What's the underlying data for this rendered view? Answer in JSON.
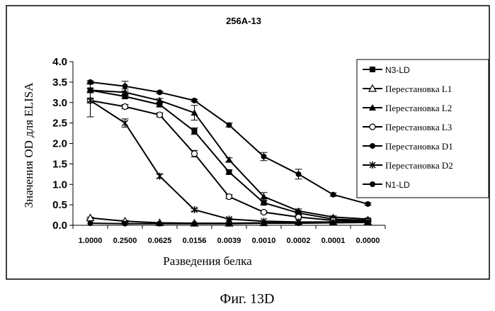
{
  "caption": "Фиг. 13D",
  "chart_data": {
    "type": "line",
    "title": "256A-13",
    "xlabel": "Разведения белка",
    "ylabel": "Значения OD для ELISA",
    "categories": [
      "1.0000",
      "0.2500",
      "0.0625",
      "0.0156",
      "0.0039",
      "0.0010",
      "0.0002",
      "0.0001",
      "0.0000"
    ],
    "ylim": [
      0,
      4
    ],
    "yticks": [
      "0.0",
      "0.5",
      "1.0",
      "1.5",
      "2.0",
      "2.5",
      "3.0",
      "3.5",
      "4.0"
    ],
    "legend_position": "right",
    "series": [
      {
        "name": "N3-LD",
        "marker": "filled-square",
        "values": [
          3.3,
          3.15,
          2.95,
          2.3,
          1.3,
          0.55,
          0.3,
          0.15,
          0.12
        ],
        "errors": [
          0.05,
          0.05,
          0.05,
          0.08,
          0.05,
          0.05,
          0.05,
          0.03,
          0.02
        ]
      },
      {
        "name": "Перестановка L1",
        "marker": "open-triangle",
        "values": [
          0.18,
          0.1,
          0.06,
          0.05,
          0.05,
          0.06,
          0.07,
          0.08,
          0.08
        ],
        "errors": [
          0.02,
          0.02,
          0.01,
          0.01,
          0.01,
          0.01,
          0.01,
          0.01,
          0.01
        ]
      },
      {
        "name": "Перестановка L2",
        "marker": "filled-triangle",
        "values": [
          3.3,
          3.25,
          3.05,
          2.75,
          1.6,
          0.7,
          0.35,
          0.2,
          0.15
        ],
        "errors": [
          0.05,
          0.08,
          0.05,
          0.18,
          0.05,
          0.1,
          0.05,
          0.03,
          0.02
        ]
      },
      {
        "name": "Перестановка L3",
        "marker": "open-circle",
        "values": [
          3.05,
          2.9,
          2.7,
          1.75,
          0.7,
          0.32,
          0.2,
          0.12,
          0.1
        ],
        "errors": [
          0.05,
          0.05,
          0.05,
          0.08,
          0.05,
          0.03,
          0.02,
          0.02,
          0.02
        ]
      },
      {
        "name": "Перестановка D1",
        "marker": "filled-circle",
        "values": [
          3.5,
          3.4,
          3.25,
          3.05,
          2.45,
          1.68,
          1.25,
          0.75,
          0.52
        ],
        "errors": [
          0.03,
          0.12,
          0.03,
          0.03,
          0.05,
          0.1,
          0.12,
          0.04,
          0.03
        ]
      },
      {
        "name": "Перестановка D2",
        "marker": "asterisk",
        "values": [
          3.05,
          2.5,
          1.2,
          0.38,
          0.15,
          0.1,
          0.08,
          0.08,
          0.08
        ],
        "errors": [
          0.4,
          0.1,
          0.05,
          0.03,
          0.02,
          0.01,
          0.01,
          0.01,
          0.01
        ]
      },
      {
        "name": "N1-LD",
        "marker": "filled-circle",
        "values": [
          0.05,
          0.04,
          0.04,
          0.04,
          0.04,
          0.05,
          0.05,
          0.06,
          0.07
        ],
        "errors": [
          0.01,
          0.01,
          0.01,
          0.01,
          0.01,
          0.01,
          0.01,
          0.01,
          0.01
        ]
      }
    ]
  }
}
